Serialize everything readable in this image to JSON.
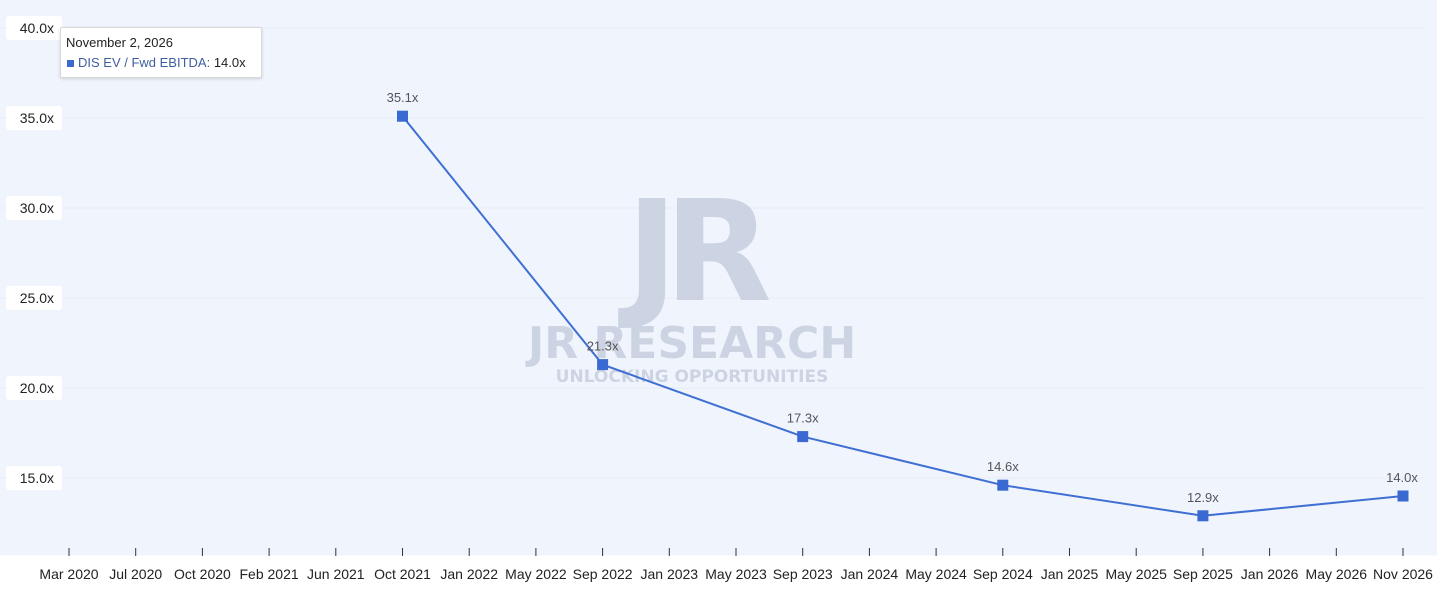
{
  "colors": {
    "plot_background": "#f0f4fd",
    "series": "#3f6fd3",
    "marker": "#3a6ad1",
    "gridline": "#e6ebf5",
    "watermark": "#c9d0e0"
  },
  "watermark": {
    "logo": "JR",
    "title": "JR RESEARCH",
    "subtitle": "UNLOCKING OPPORTUNITIES"
  },
  "tooltip": {
    "date": "November 2, 2026",
    "series_name": "DIS EV / Fwd EBITDA",
    "value": "14.0x"
  },
  "chart_data": {
    "type": "line",
    "title": "",
    "xlabel": "",
    "ylabel": "",
    "x_tick_labels": [
      "Mar 2020",
      "Jul 2020",
      "Oct 2020",
      "Feb 2021",
      "Jun 2021",
      "Oct 2021",
      "Jan 2022",
      "May 2022",
      "Sep 2022",
      "Jan 2023",
      "May 2023",
      "Sep 2023",
      "Jan 2024",
      "May 2024",
      "Sep 2024",
      "Jan 2025",
      "May 2025",
      "Sep 2025",
      "Jan 2026",
      "May 2026",
      "Nov 2026"
    ],
    "y_ticks": [
      15,
      20,
      25,
      30,
      35,
      40
    ],
    "y_tick_labels": [
      "15.0x",
      "20.0x",
      "25.0x",
      "30.0x",
      "35.0x",
      "40.0x"
    ],
    "ylim": [
      11,
      40
    ],
    "grid": true,
    "legend": "none",
    "series": [
      {
        "name": "DIS EV / Fwd EBITDA",
        "points": [
          {
            "x": "Oct 2021",
            "y": 35.1,
            "label": "35.1x"
          },
          {
            "x": "Sep 2022",
            "y": 21.3,
            "label": "21.3x"
          },
          {
            "x": "Sep 2023",
            "y": 17.3,
            "label": "17.3x"
          },
          {
            "x": "Sep 2024",
            "y": 14.6,
            "label": "14.6x"
          },
          {
            "x": "Sep 2025",
            "y": 12.9,
            "label": "12.9x"
          },
          {
            "x": "Nov 2026",
            "y": 14.0,
            "label": "14.0x"
          }
        ]
      }
    ]
  }
}
